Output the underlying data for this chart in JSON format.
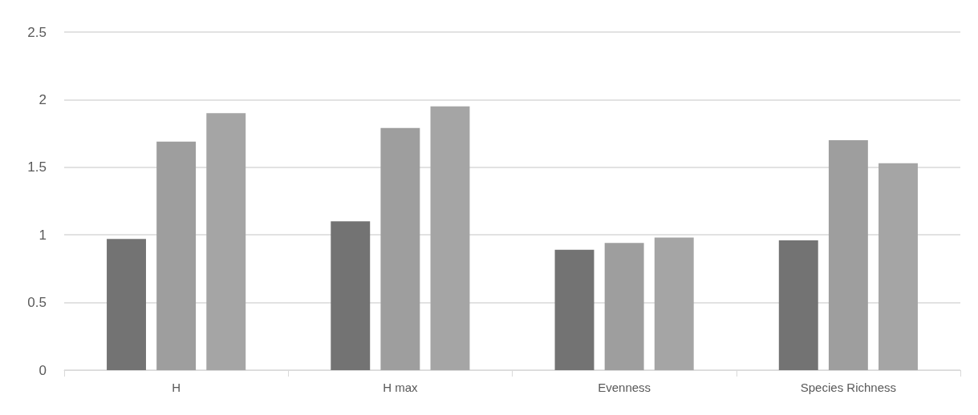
{
  "chart_data": {
    "type": "bar",
    "categories": [
      "H",
      "H max",
      "Evenness",
      "Species Richness"
    ],
    "series": [
      {
        "color": "#737373",
        "values": [
          0.97,
          1.1,
          0.89,
          0.96
        ]
      },
      {
        "color": "#9e9e9e",
        "values": [
          1.69,
          1.79,
          0.94,
          1.7
        ]
      },
      {
        "color": "#a5a5a5",
        "values": [
          1.9,
          1.95,
          0.98,
          1.53
        ]
      }
    ],
    "ylim": [
      0,
      2.5
    ],
    "yticks": [
      0,
      0.5,
      1,
      1.5,
      2,
      2.5
    ],
    "grid": "y"
  }
}
